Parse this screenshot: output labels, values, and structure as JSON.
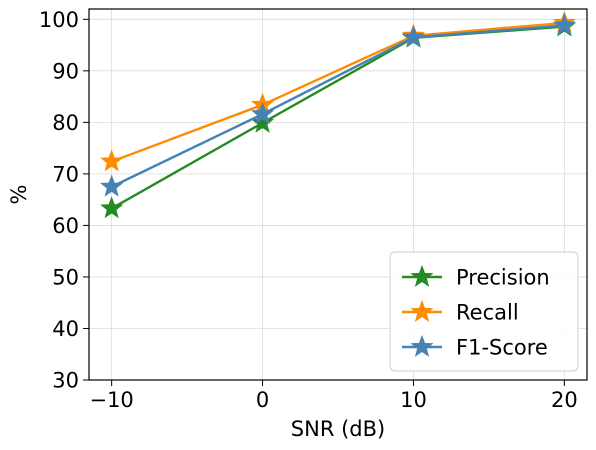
{
  "chart_data": {
    "type": "line",
    "title": "",
    "xlabel": "SNR (dB)",
    "ylabel": "%",
    "x": [
      -10,
      0,
      10,
      20
    ],
    "xlim": [
      -11.5,
      21.5
    ],
    "ylim": [
      30,
      102
    ],
    "xticks": [
      -10,
      0,
      10,
      20
    ],
    "xtick_labels": [
      "−10",
      "0",
      "10",
      "20"
    ],
    "yticks": [
      30,
      40,
      50,
      60,
      70,
      80,
      90,
      100
    ],
    "ytick_labels": [
      "30",
      "40",
      "50",
      "60",
      "70",
      "80",
      "90",
      "100"
    ],
    "grid": true,
    "legend_position": "bottom-right",
    "marker": "star",
    "series": [
      {
        "name": "Precision",
        "color": "#228B22",
        "values": [
          63.3,
          79.9,
          96.4,
          98.6
        ]
      },
      {
        "name": "Recall",
        "color": "#FF8C00",
        "values": [
          72.4,
          83.4,
          96.8,
          99.3
        ]
      },
      {
        "name": "F1-Score",
        "color": "#4682B4",
        "values": [
          67.5,
          81.6,
          96.5,
          98.8
        ]
      }
    ]
  }
}
